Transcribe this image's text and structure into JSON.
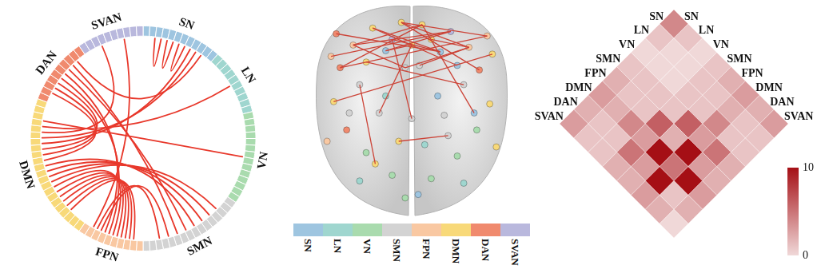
{
  "chart_data": [
    {
      "type": "chord",
      "categories": [
        "SN",
        "LN",
        "VN",
        "SMN",
        "FPN",
        "DMN",
        "DAN",
        "SVAN"
      ],
      "colors": [
        "#9ec5e0",
        "#9fd6cf",
        "#a9dbae",
        "#d3d3d3",
        "#f9c8a2",
        "#f8d979",
        "#f08a6e",
        "#b9b8dd"
      ],
      "node_counts": [
        12,
        10,
        14,
        16,
        10,
        22,
        10,
        10
      ],
      "links": [
        [
          "SN",
          "SN"
        ],
        [
          "SN",
          "SN"
        ],
        [
          "SN",
          "SN"
        ],
        [
          "DMN",
          "FPN"
        ],
        [
          "DMN",
          "FPN"
        ],
        [
          "DMN",
          "FPN"
        ],
        [
          "DMN",
          "FPN"
        ],
        [
          "DMN",
          "FPN"
        ],
        [
          "DMN",
          "FPN"
        ],
        [
          "DMN",
          "SMN"
        ],
        [
          "DMN",
          "SMN"
        ],
        [
          "DMN",
          "SMN"
        ],
        [
          "DMN",
          "SMN"
        ],
        [
          "DMN",
          "DAN"
        ],
        [
          "DMN",
          "DAN"
        ],
        [
          "DMN",
          "DAN"
        ],
        [
          "DMN",
          "SN"
        ],
        [
          "DMN",
          "SN"
        ],
        [
          "DAN",
          "FPN"
        ],
        [
          "DAN",
          "FPN"
        ],
        [
          "DAN",
          "SMN"
        ],
        [
          "DAN",
          "SMN"
        ],
        [
          "SMN",
          "FPN"
        ],
        [
          "SMN",
          "FPN"
        ],
        [
          "SVAN",
          "DMN"
        ],
        [
          "LN",
          "DMN"
        ],
        [
          "VN",
          "DMN"
        ],
        [
          "SVAN",
          "FPN"
        ],
        [
          "SN",
          "DAN"
        ]
      ]
    },
    {
      "type": "network",
      "categories": [
        "SN",
        "LN",
        "VN",
        "SMN",
        "FPN",
        "DMN",
        "DAN",
        "SVAN"
      ],
      "colors": [
        "#9ec5e0",
        "#9fd6cf",
        "#a9dbae",
        "#d3d3d3",
        "#f9c8a2",
        "#f8d979",
        "#f08a6e",
        "#b9b8dd"
      ],
      "xlim": [
        -80,
        80
      ],
      "ylim": [
        -110,
        75
      ],
      "tick_labels": false,
      "nodes": [
        [
          -8,
          60,
          "DMN"
        ],
        [
          8,
          58,
          "DMN"
        ],
        [
          -45,
          40,
          "FPN"
        ],
        [
          44,
          38,
          "FPN"
        ],
        [
          -30,
          55,
          "DMN"
        ],
        [
          30,
          52,
          "SVAN"
        ],
        [
          -55,
          20,
          "DAN"
        ],
        [
          52,
          18,
          "DAN"
        ],
        [
          -20,
          35,
          "SN"
        ],
        [
          22,
          34,
          "SN"
        ],
        [
          -5,
          20,
          "SMN"
        ],
        [
          6,
          22,
          "SMN"
        ],
        [
          -40,
          5,
          "SMN"
        ],
        [
          40,
          5,
          "SMN"
        ],
        [
          -60,
          -10,
          "DMN"
        ],
        [
          60,
          -12,
          "DMN"
        ],
        [
          -25,
          -20,
          "SMN"
        ],
        [
          25,
          -22,
          "SMN"
        ],
        [
          -50,
          -35,
          "DAN"
        ],
        [
          50,
          -35,
          "VN"
        ],
        [
          -10,
          -45,
          "DMN"
        ],
        [
          10,
          -48,
          "LN"
        ],
        [
          -35,
          -55,
          "VN"
        ],
        [
          35,
          -58,
          "VN"
        ],
        [
          -15,
          -75,
          "VN"
        ],
        [
          15,
          -78,
          "VN"
        ],
        [
          -40,
          -80,
          "LN"
        ],
        [
          40,
          -82,
          "LN"
        ],
        [
          -5,
          -95,
          "VN"
        ],
        [
          5,
          -92,
          "SN"
        ],
        [
          -62,
          30,
          "FPN"
        ],
        [
          62,
          32,
          "DMN"
        ],
        [
          -15,
          45,
          "SVAN"
        ],
        [
          15,
          45,
          "DMN"
        ],
        [
          -35,
          25,
          "DMN"
        ],
        [
          35,
          22,
          "SN"
        ],
        [
          -48,
          -20,
          "SMN"
        ],
        [
          48,
          -20,
          "SN"
        ],
        [
          -20,
          -5,
          "LN"
        ],
        [
          20,
          -5,
          "SN"
        ],
        [
          -58,
          50,
          "DAN"
        ],
        [
          58,
          48,
          "FPN"
        ],
        [
          0,
          40,
          "DMN"
        ],
        [
          -28,
          -65,
          "DMN"
        ],
        [
          28,
          -40,
          "SMN"
        ],
        [
          -65,
          -45,
          "FPN"
        ],
        [
          65,
          -50,
          "DMN"
        ],
        [
          0,
          -25,
          "SMN"
        ]
      ],
      "edges": [
        [
          0,
          3
        ],
        [
          0,
          7
        ],
        [
          1,
          2
        ],
        [
          1,
          6
        ],
        [
          4,
          9
        ],
        [
          5,
          2
        ],
        [
          5,
          30
        ],
        [
          6,
          41
        ],
        [
          32,
          9
        ],
        [
          33,
          3
        ],
        [
          42,
          8
        ],
        [
          43,
          12
        ],
        [
          34,
          13
        ],
        [
          2,
          10
        ],
        [
          3,
          11
        ],
        [
          9,
          40
        ],
        [
          31,
          14
        ],
        [
          0,
          41
        ],
        [
          4,
          35
        ],
        [
          5,
          8
        ],
        [
          42,
          16
        ],
        [
          1,
          37
        ],
        [
          32,
          47
        ],
        [
          44,
          20
        ],
        [
          10,
          3
        ]
      ]
    },
    {
      "type": "heatmap",
      "categories": [
        "SN",
        "LN",
        "VN",
        "SMN",
        "FPN",
        "DMN",
        "DAN",
        "SVAN"
      ],
      "cells": [
        [
          4,
          1,
          0,
          1,
          2,
          3,
          2,
          3
        ],
        [
          1,
          0,
          0,
          1,
          1,
          2,
          1,
          1
        ],
        [
          0,
          0,
          0,
          1,
          1,
          4,
          1,
          1
        ],
        [
          1,
          1,
          1,
          1,
          6,
          3,
          5,
          2
        ],
        [
          2,
          1,
          1,
          6,
          2,
          10,
          3,
          2
        ],
        [
          3,
          2,
          4,
          3,
          10,
          5,
          10,
          3
        ],
        [
          2,
          1,
          1,
          5,
          3,
          10,
          1,
          2
        ],
        [
          3,
          1,
          1,
          2,
          2,
          3,
          2,
          0
        ]
      ],
      "colorbar": {
        "range": [
          0,
          10
        ],
        "ticks": [
          0,
          10
        ]
      }
    }
  ]
}
